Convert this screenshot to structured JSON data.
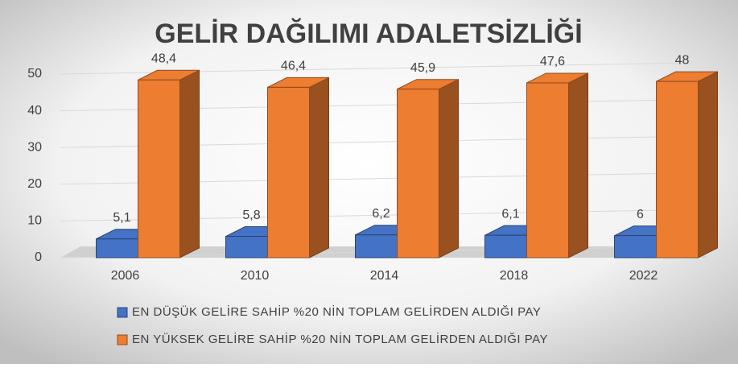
{
  "chart_data": {
    "type": "bar3d",
    "title": "GELİR DAĞILIMI ADALETSİZLİĞİ",
    "categories": [
      "2006",
      "2010",
      "2014",
      "2018",
      "2022"
    ],
    "series": [
      {
        "name": "EN DÜŞÜK GELİRE SAHİP %20 NİN TOPLAM GELİRDEN ALDIĞI PAY",
        "color": "#4472c4",
        "values": [
          5.1,
          5.8,
          6.2,
          6.1,
          6
        ],
        "value_labels": [
          "5,1",
          "5,8",
          "6,2",
          "6,1",
          "6"
        ]
      },
      {
        "name": "EN YÜKSEK GELİRE SAHİP %20 NİN TOPLAM GELİRDEN ALDIĞI PAY",
        "color": "#ed7d31",
        "values": [
          48.4,
          46.4,
          45.9,
          47.6,
          48
        ],
        "value_labels": [
          "48,4",
          "46,4",
          "45,9",
          "47,6",
          "48"
        ]
      }
    ],
    "ylim": [
      0,
      50
    ],
    "yticks": [
      0,
      10,
      20,
      30,
      40,
      50
    ],
    "grid": true
  }
}
